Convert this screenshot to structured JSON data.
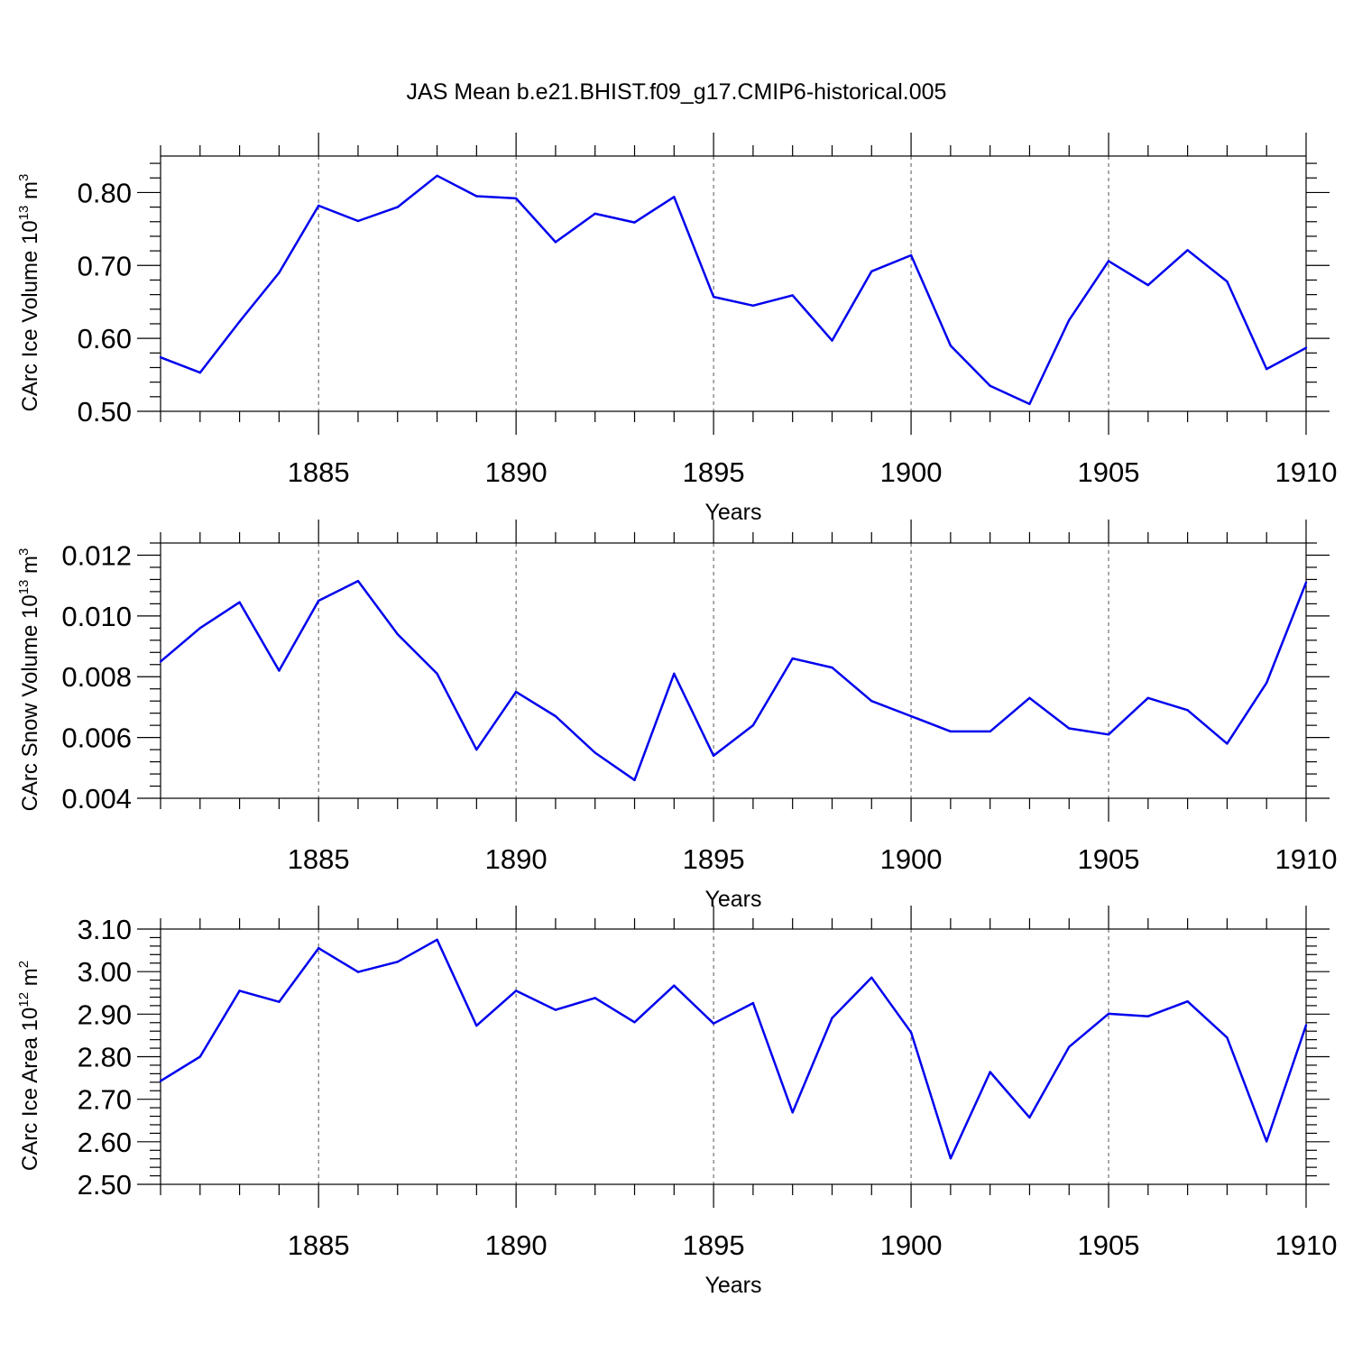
{
  "title": "JAS Mean b.e21.BHIST.f09_g17.CMIP6-historical.005",
  "colors": {
    "line": "#0000ee",
    "grid": "#555555"
  },
  "chart_data": [
    {
      "type": "line",
      "ylabel": {
        "main": "CArc Ice Volume 10",
        "sup": "13",
        "unit": " m",
        "unit_sup": "3"
      },
      "xlabel": "Years",
      "xlim": [
        1881,
        1910
      ],
      "ylim": [
        0.5,
        0.85
      ],
      "yticks": [
        "0.50",
        "0.60",
        "0.70",
        "0.80"
      ],
      "xticks": [
        "1885",
        "1890",
        "1895",
        "1900",
        "1905",
        "1910"
      ],
      "grid": "vertical dashed at major x ticks",
      "x": [
        1881,
        1882,
        1883,
        1884,
        1885,
        1886,
        1887,
        1888,
        1889,
        1890,
        1891,
        1892,
        1893,
        1894,
        1895,
        1896,
        1897,
        1898,
        1899,
        1900,
        1901,
        1902,
        1903,
        1904,
        1905,
        1906,
        1907,
        1908,
        1909,
        1910
      ],
      "values": [
        0.574,
        0.553,
        0.623,
        0.69,
        0.782,
        0.761,
        0.78,
        0.823,
        0.795,
        0.792,
        0.732,
        0.771,
        0.759,
        0.794,
        0.657,
        0.645,
        0.659,
        0.597,
        0.692,
        0.714,
        0.59,
        0.535,
        0.51,
        0.625,
        0.706,
        0.673,
        0.721,
        0.678,
        0.558,
        0.587
      ]
    },
    {
      "type": "line",
      "ylabel": {
        "main": "CArc Snow Volume 10",
        "sup": "13",
        "unit": " m",
        "unit_sup": "3"
      },
      "xlabel": "Years",
      "xlim": [
        1881,
        1910
      ],
      "ylim": [
        0.004,
        0.0124
      ],
      "yticks": [
        "0.004",
        "0.006",
        "0.008",
        "0.010",
        "0.012"
      ],
      "xticks": [
        "1885",
        "1890",
        "1895",
        "1900",
        "1905",
        "1910"
      ],
      "grid": "vertical dashed at major x ticks",
      "x": [
        1881,
        1882,
        1883,
        1884,
        1885,
        1886,
        1887,
        1888,
        1889,
        1890,
        1891,
        1892,
        1893,
        1894,
        1895,
        1896,
        1897,
        1898,
        1899,
        1900,
        1901,
        1902,
        1903,
        1904,
        1905,
        1906,
        1907,
        1908,
        1909,
        1910
      ],
      "values": [
        0.0085,
        0.0096,
        0.01045,
        0.0082,
        0.0105,
        0.01115,
        0.0094,
        0.0081,
        0.0056,
        0.0075,
        0.0067,
        0.0055,
        0.0046,
        0.0081,
        0.0054,
        0.0064,
        0.0086,
        0.0083,
        0.0072,
        0.0067,
        0.0062,
        0.0062,
        0.0073,
        0.0063,
        0.0061,
        0.0073,
        0.0069,
        0.0058,
        0.0078,
        0.0111
      ]
    },
    {
      "type": "line",
      "ylabel": {
        "main": "CArc Ice Area 10",
        "sup": "12",
        "unit": " m",
        "unit_sup": "2"
      },
      "xlabel": "Years",
      "xlim": [
        1881,
        1910
      ],
      "ylim": [
        2.5,
        3.1
      ],
      "yticks": [
        "2.50",
        "2.60",
        "2.70",
        "2.80",
        "2.90",
        "3.00",
        "3.10"
      ],
      "xticks": [
        "1885",
        "1890",
        "1895",
        "1900",
        "1905",
        "1910"
      ],
      "grid": "vertical dashed at major x ticks",
      "x": [
        1881,
        1882,
        1883,
        1884,
        1885,
        1886,
        1887,
        1888,
        1889,
        1890,
        1891,
        1892,
        1893,
        1894,
        1895,
        1896,
        1897,
        1898,
        1899,
        1900,
        1901,
        1902,
        1903,
        1904,
        1905,
        1906,
        1907,
        1908,
        1909,
        1910
      ],
      "values": [
        2.743,
        2.8,
        2.955,
        2.929,
        3.055,
        2.999,
        3.023,
        3.075,
        2.873,
        2.955,
        2.91,
        2.938,
        2.881,
        2.967,
        2.878,
        2.926,
        2.669,
        2.891,
        2.986,
        2.857,
        2.561,
        2.764,
        2.657,
        2.823,
        2.901,
        2.895,
        2.93,
        2.845,
        2.601,
        2.874
      ]
    }
  ]
}
